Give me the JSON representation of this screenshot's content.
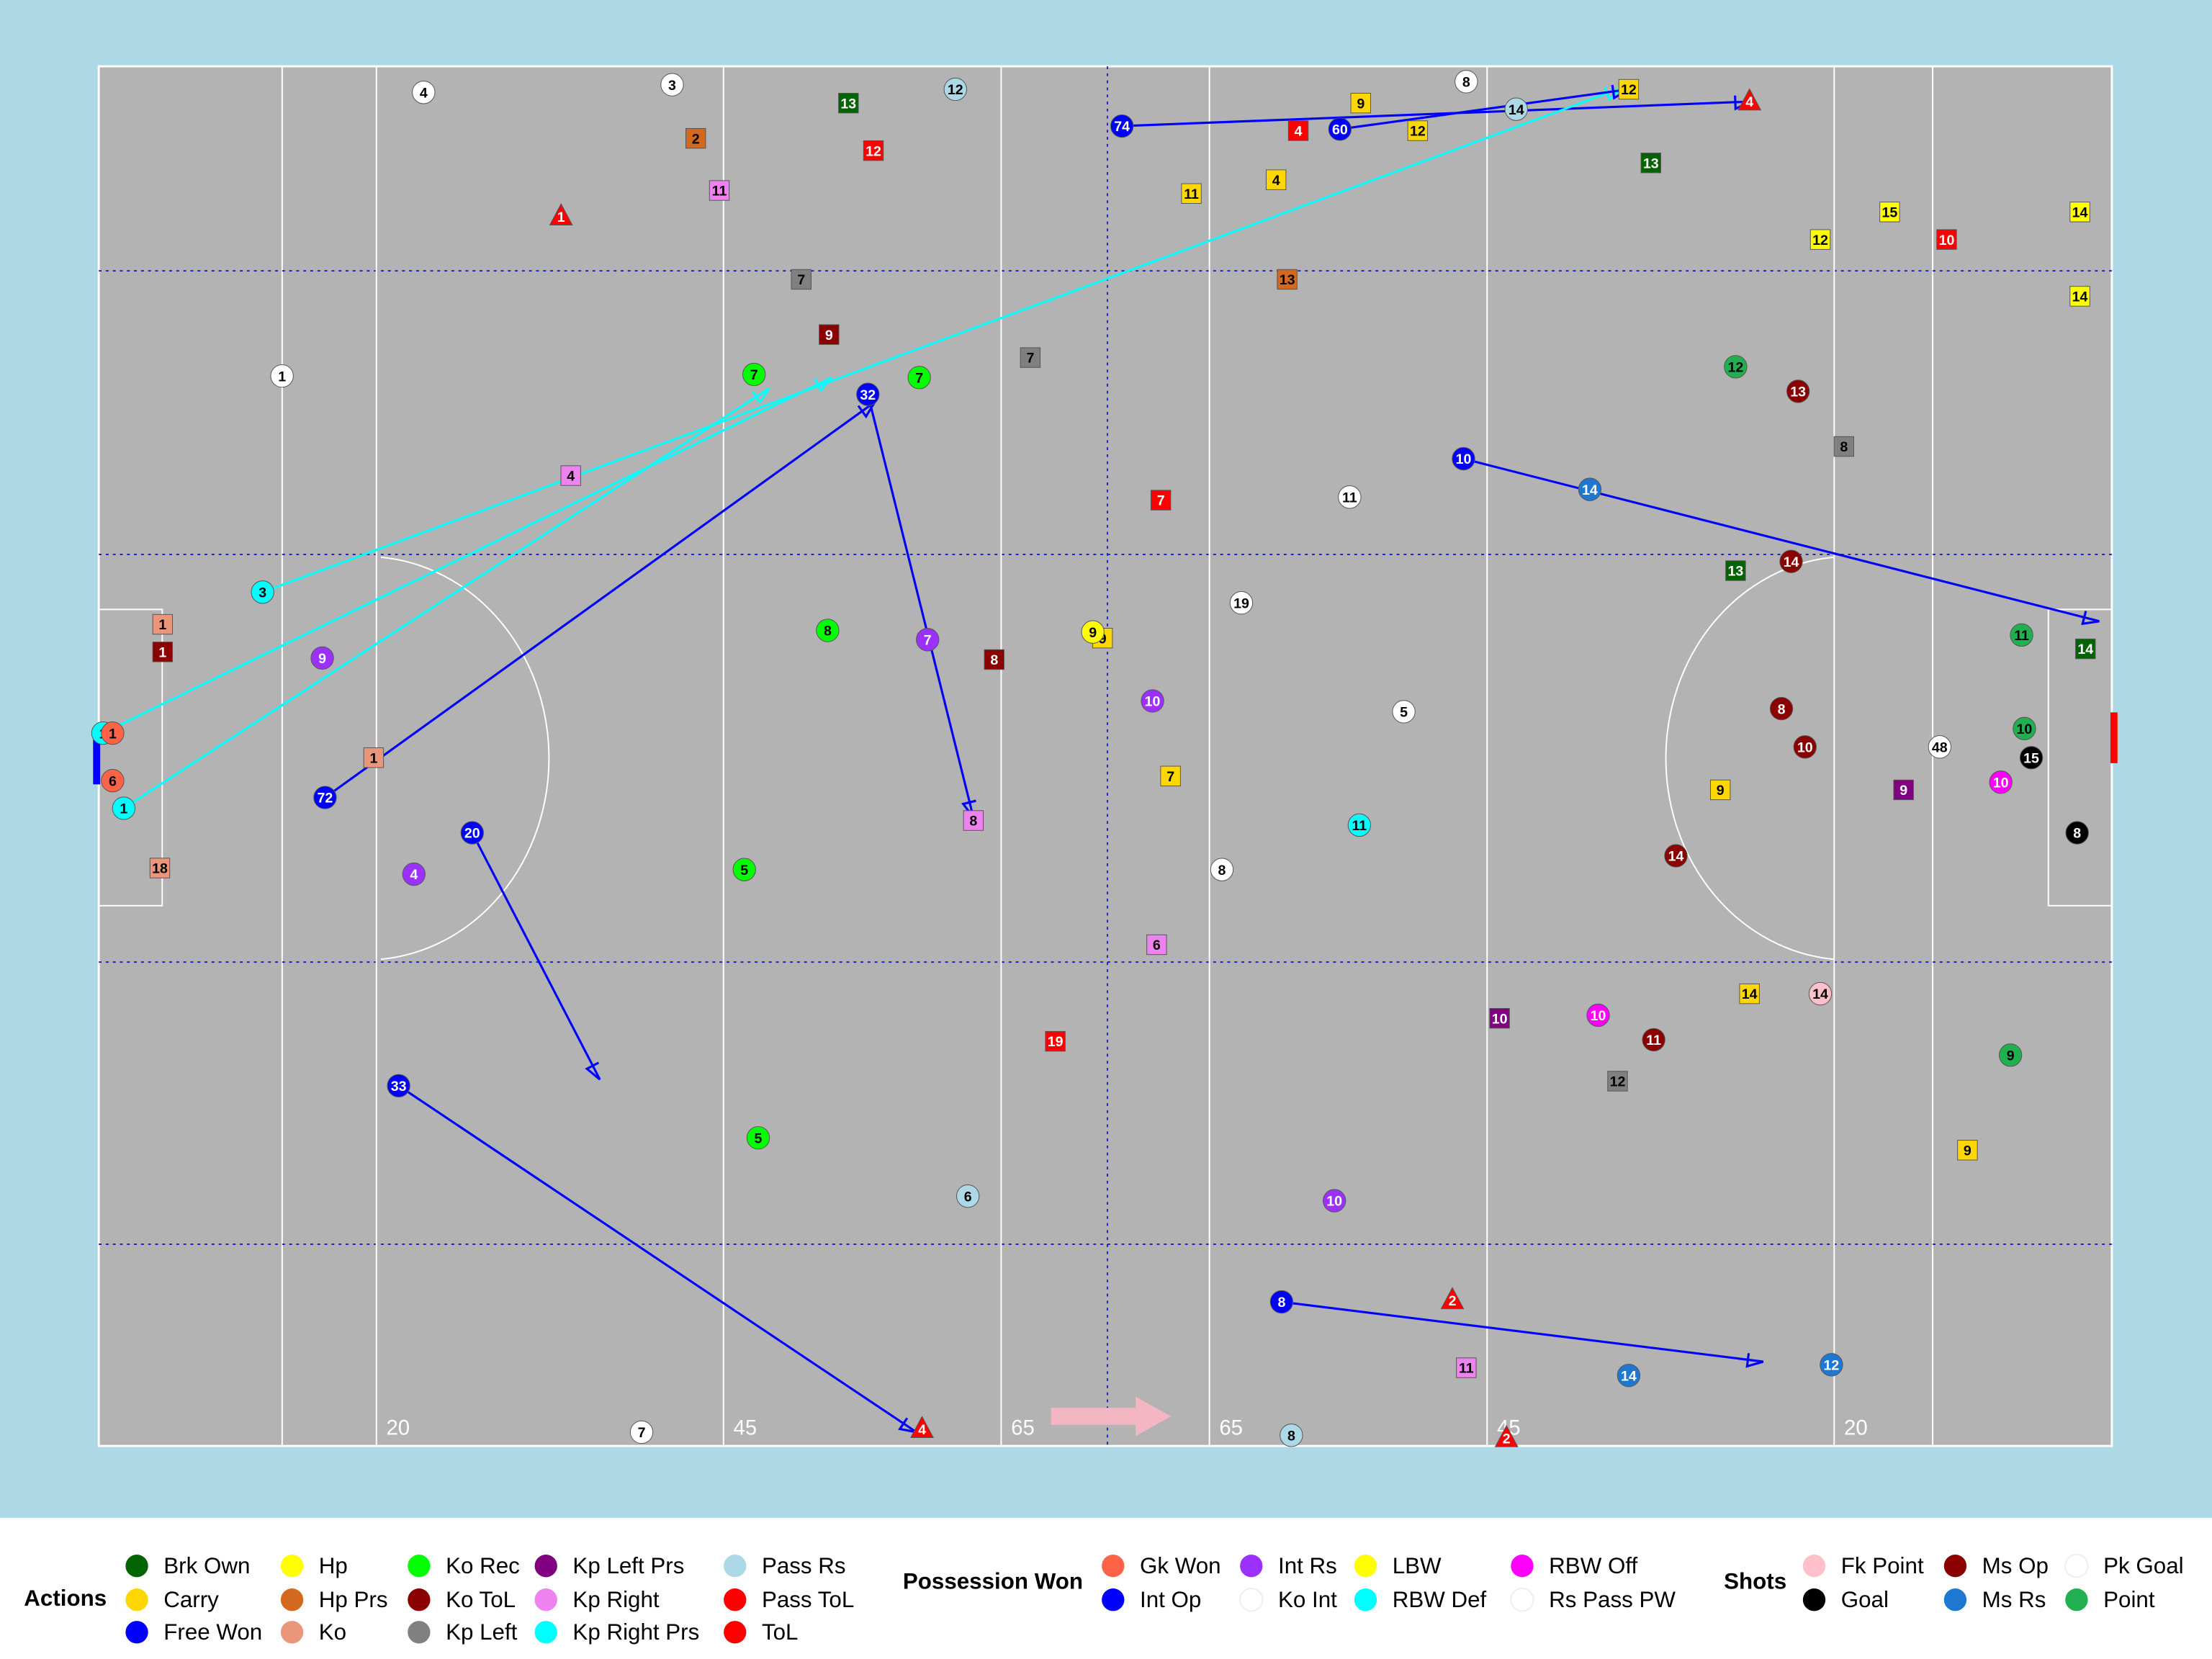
{
  "chart_data": {
    "type": "scatter",
    "xlim": [
      0,
      145
    ],
    "ylim": [
      0,
      90
    ],
    "xticks": [
      20,
      45,
      65,
      {
        "value": 80,
        "label": "65"
      },
      {
        "value": 100,
        "label": "45"
      },
      {
        "value": 125,
        "label": "20"
      }
    ],
    "groups": [
      {
        "title": "Actions",
        "series": [
          {
            "name": "Brk Own",
            "color": "#006400",
            "shape": "square",
            "x": [
              54.0,
              111.8,
              117.9,
              143.1
            ],
            "y": [
              2.4,
              6.3,
              32.9,
              38.0
            ],
            "labels": [
              13,
              13,
              13,
              14
            ]
          },
          {
            "name": "Carry",
            "color": "#ffd700",
            "shape": "square",
            "x": [
              90.9,
              95.0,
              78.7,
              84.8,
              110.2,
              77.2,
              72.3,
              116.8,
              134.6,
              118.9
            ],
            "y": [
              2.4,
              4.2,
              8.3,
              7.4,
              1.5,
              46.3,
              37.3,
              47.2,
              70.7,
              60.5
            ],
            "labels": [
              9,
              12,
              11,
              4,
              12,
              7,
              9,
              9,
              9,
              14
            ]
          },
          {
            "name": "Free Won",
            "color": "#0000ff",
            "shape": "circle",
            "x": [
              73.7,
              21.6,
              26.9,
              16.3,
              55.4
            ],
            "y": [
              3.9,
              66.5,
              50.0,
              47.7,
              21.4
            ],
            "x_end": [
              119.0,
              58.9,
              36.1,
              55.9,
              63.0
            ],
            "y_end": [
              2.3,
              89.1,
              66.1,
              21.9,
              49.0
            ],
            "labels": [
              74,
              33,
              20,
              72,
              32
            ]
          },
          {
            "name": "Hp",
            "color": "#ffff00",
            "shape": "square",
            "x": [
              124.0,
              142.7,
              142.7,
              129.0
            ],
            "y": [
              11.3,
              9.5,
              15.0,
              9.5
            ],
            "labels": [
              12,
              14,
              14,
              15
            ]
          },
          {
            "name": "Hp Prs",
            "color": "#d2691e",
            "shape": "square",
            "x": [
              43.0,
              85.6
            ],
            "y": [
              4.7,
              13.9
            ],
            "labels": [
              2,
              13
            ]
          },
          {
            "name": "Ko",
            "color": "#e9967a",
            "shape": "square",
            "x": [
              4.6,
              4.4,
              19.8
            ],
            "y": [
              36.4,
              52.3,
              45.1
            ],
            "labels": [
              1,
              18,
              1
            ]
          },
          {
            "name": "Ko Rec",
            "color": "#00ff00",
            "shape": "circle",
            "x": [
              47.2,
              59.1,
              52.5,
              46.5,
              47.5
            ],
            "y": [
              20.1,
              20.3,
              36.8,
              52.4,
              69.9
            ],
            "labels": [
              7,
              7,
              8,
              5,
              5
            ]
          },
          {
            "name": "Ko ToL",
            "color": "#8b0000",
            "shape": "square",
            "x": [
              4.6,
              52.6,
              64.5
            ],
            "y": [
              38.2,
              17.5,
              38.7
            ],
            "labels": [
              1,
              9,
              8
            ]
          },
          {
            "name": "Kp Left",
            "color": "#808080",
            "shape": "square",
            "x": [
              50.6,
              67.1,
              125.7,
              109.4
            ],
            "y": [
              13.9,
              19.0,
              24.8,
              66.2
            ],
            "labels": [
              7,
              7,
              8,
              12
            ]
          },
          {
            "name": "Kp Left Prs",
            "color": "#800080",
            "shape": "square",
            "x": [
              130.0,
              100.9
            ],
            "y": [
              47.2,
              62.1
            ],
            "labels": [
              9,
              10
            ]
          },
          {
            "name": "Kp Right",
            "color": "#ee82ee",
            "shape": "square",
            "x": [
              44.7,
              34.0,
              63.0,
              98.5,
              76.2
            ],
            "y": [
              8.1,
              26.7,
              49.2,
              84.9,
              57.3
            ],
            "labels": [
              11,
              4,
              8,
              11,
              6
            ]
          },
          {
            "name": "Kp Right Prs",
            "color": "#00ffff",
            "shape": "circle",
            "x": [
              11.8,
              1.8,
              0.3
            ],
            "y": [
              34.3,
              48.4,
              43.5
            ],
            "x_end": [
              109.7,
              48.3,
              52.8
            ],
            "y_end": [
              1.4,
              21.0,
              20.3
            ],
            "labels": [
              3,
              1,
              1
            ]
          },
          {
            "name": "Pass Rs",
            "color": "#add8e6",
            "shape": "circle",
            "x": [
              61.7,
              62.6,
              85.9,
              102.1
            ],
            "y": [
              1.5,
              73.7,
              89.3,
              2.8
            ],
            "labels": [
              12,
              6,
              8,
              14
            ]
          },
          {
            "name": "Pass ToL",
            "color": "#ff0000",
            "shape": "square",
            "x": [
              86.4,
              55.8,
              76.5,
              133.1,
              68.9
            ],
            "y": [
              4.2,
              5.5,
              28.3,
              11.3,
              63.6
            ],
            "labels": [
              4,
              12,
              7,
              10,
              19
            ]
          },
          {
            "name": "ToL",
            "color": "#ff0000",
            "shape": "triangle",
            "x": [
              33.3,
              118.9,
              59.3,
              101.4,
              97.5
            ],
            "y": [
              9.8,
              2.3,
              88.9,
              89.5,
              80.5
            ],
            "labels": [
              1,
              4,
              4,
              2,
              2
            ]
          }
        ]
      },
      {
        "title": "Possession Won",
        "series": [
          {
            "name": "Gk Won",
            "color": "#ff6347",
            "shape": "circle",
            "x": [
              1.0,
              1.0
            ],
            "y": [
              43.5,
              46.6
            ],
            "labels": [
              1,
              6
            ]
          },
          {
            "name": "Int Op",
            "color": "#0000ff",
            "shape": "circle",
            "x": [
              89.4,
              98.3,
              85.2
            ],
            "y": [
              4.1,
              25.6,
              80.6
            ],
            "x_end": [
              110.2,
              144.1,
              119.9
            ],
            "y_end": [
              1.5,
              36.2,
              84.5
            ],
            "labels": [
              60,
              10,
              8
            ]
          },
          {
            "name": "Int Rs",
            "color": "#9b30ff",
            "shape": "circle",
            "x": [
              16.1,
              59.7,
              75.9,
              89.0,
              22.7
            ],
            "y": [
              38.6,
              37.4,
              41.4,
              74.0,
              52.7
            ],
            "labels": [
              9,
              7,
              10,
              10,
              4
            ]
          },
          {
            "name": "Ko Int",
            "color": "#ffffff",
            "shape": "circle",
            "x": [
              23.4,
              41.3,
              13.2,
              82.3,
              80.9,
              39.1
            ],
            "y": [
              1.7,
              1.2,
              20.2,
              35.0,
              52.4,
              89.1
            ],
            "labels": [
              4,
              3,
              1,
              19,
              8,
              7
            ]
          },
          {
            "name": "LBW",
            "color": "#ffff00",
            "shape": "circle",
            "x": [
              71.6
            ],
            "y": [
              36.9
            ],
            "labels": [
              9
            ]
          },
          {
            "name": "RBW Def",
            "color": "#00ffff",
            "shape": "circle",
            "x": [
              90.8
            ],
            "y": [
              49.5
            ],
            "labels": [
              11
            ]
          },
          {
            "name": "RBW Off",
            "color": "#ff00ff",
            "shape": "circle",
            "x": [
              108.0,
              137.0
            ],
            "y": [
              61.9,
              46.7
            ],
            "labels": [
              10,
              10
            ]
          },
          {
            "name": "Rs Pass PW",
            "color": "#ffffff",
            "shape": "circle",
            "x": [
              94.0,
              90.1,
              98.5
            ],
            "y": [
              42.1,
              28.1,
              1.0
            ],
            "labels": [
              5,
              11,
              8
            ]
          }
        ]
      },
      {
        "title": "Shots",
        "series": [
          {
            "name": "Fk Point",
            "color": "#ffc0cb",
            "shape": "circle",
            "x": [
              124.0
            ],
            "y": [
              60.5
            ],
            "labels": [
              14
            ]
          },
          {
            "name": "Goal",
            "color": "#000000",
            "shape": "circle",
            "x": [
              139.2,
              142.5
            ],
            "y": [
              45.1,
              50.0
            ],
            "labels": [
              15,
              8
            ]
          },
          {
            "name": "Ms Op",
            "color": "#8b0000",
            "shape": "circle",
            "x": [
              122.4,
              121.9,
              121.2,
              122.9,
              113.6,
              112.0
            ],
            "y": [
              21.2,
              32.3,
              41.9,
              44.4,
              51.5,
              63.5
            ],
            "labels": [
              13,
              14,
              8,
              10,
              14,
              11
            ]
          },
          {
            "name": "Ms Rs",
            "color": "#1e78d2",
            "shape": "circle",
            "x": [
              107.4,
              110.2,
              124.8
            ],
            "y": [
              27.6,
              85.4,
              84.7
            ],
            "labels": [
              14,
              14,
              12
            ]
          },
          {
            "name": "Pk Goal",
            "color": "#ffffff",
            "shape": "circle",
            "x": [
              132.6
            ],
            "y": [
              44.4
            ],
            "labels": [
              48
            ]
          },
          {
            "name": "Point",
            "color": "#20b050",
            "shape": "circle",
            "x": [
              117.9,
              137.7,
              138.7,
              138.5
            ],
            "y": [
              19.6,
              64.5,
              43.2,
              37.1
            ],
            "labels": [
              12,
              9,
              10,
              11
            ]
          }
        ]
      }
    ]
  }
}
